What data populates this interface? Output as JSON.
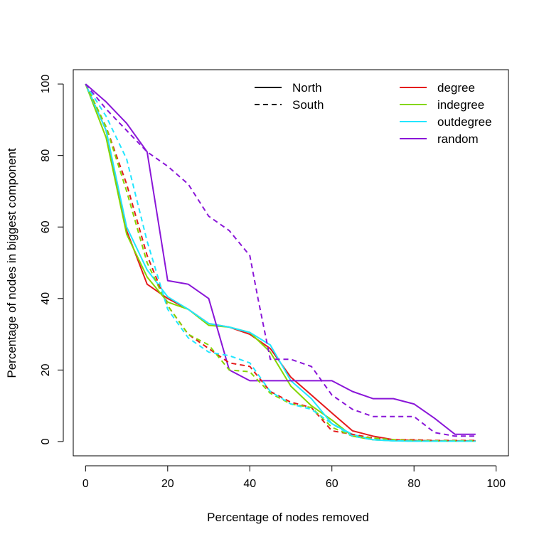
{
  "chart_data": {
    "type": "line",
    "title": "",
    "xlabel": "Percentage of nodes removed",
    "ylabel": "Percentage of nodes in biggest component",
    "xlim": [
      -3,
      103
    ],
    "ylim": [
      -4,
      104
    ],
    "xticks": [
      0,
      20,
      40,
      60,
      80,
      100
    ],
    "yticks": [
      0,
      20,
      40,
      60,
      80,
      100
    ],
    "grid": false,
    "legend_position": "top",
    "legend_linestyle": [
      {
        "label": "North",
        "dash": "solid"
      },
      {
        "label": "South",
        "dash": "dashed"
      }
    ],
    "legend_color": [
      {
        "label": "degree",
        "color": "#e41a1c"
      },
      {
        "label": "indegree",
        "color": "#84d600"
      },
      {
        "label": "outdegree",
        "color": "#22e6ff"
      },
      {
        "label": "random",
        "color": "#8a16d8"
      }
    ],
    "series": [
      {
        "color": "#e41a1c",
        "dash": "solid",
        "x": [
          0,
          5,
          10,
          15,
          20,
          25,
          30,
          35,
          40,
          45,
          50,
          55,
          60,
          65,
          70,
          75,
          80,
          85,
          90,
          95
        ],
        "y": [
          100,
          87,
          59,
          44,
          40,
          37,
          33,
          32,
          30,
          26,
          18,
          13,
          8,
          3,
          1.5,
          0.5,
          0.3,
          0.2,
          0.2,
          0.2
        ]
      },
      {
        "color": "#84d600",
        "dash": "solid",
        "x": [
          0,
          5,
          10,
          15,
          20,
          25,
          30,
          35,
          40,
          45,
          50,
          55,
          60,
          65,
          70,
          75,
          80,
          85,
          90,
          95
        ],
        "y": [
          100,
          85,
          58,
          46,
          39,
          37,
          32.5,
          32,
          30.5,
          25,
          15.5,
          10,
          6,
          1.5,
          0.5,
          0.2,
          0.1,
          0.1,
          0.1,
          0.1
        ]
      },
      {
        "color": "#22e6ff",
        "dash": "solid",
        "x": [
          0,
          5,
          10,
          15,
          20,
          25,
          30,
          35,
          40,
          45,
          50,
          55,
          60,
          65,
          70,
          75,
          80,
          85,
          90,
          95
        ],
        "y": [
          100,
          87,
          60,
          48,
          40.5,
          37,
          33,
          32,
          30.5,
          27,
          17,
          12,
          5,
          2,
          0.5,
          0.2,
          0.1,
          0.1,
          0.1,
          0.1
        ]
      },
      {
        "color": "#8a16d8",
        "dash": "solid",
        "x": [
          0,
          5,
          10,
          15,
          20,
          25,
          30,
          35,
          40,
          45,
          50,
          55,
          60,
          65,
          70,
          75,
          80,
          85,
          90,
          95
        ],
        "y": [
          100,
          95,
          89,
          81,
          45,
          44,
          40,
          20,
          17,
          17,
          17,
          17,
          17,
          14,
          12,
          12,
          10.5,
          6.5,
          2,
          2
        ]
      },
      {
        "color": "#e41a1c",
        "dash": "dashed",
        "x": [
          0,
          5,
          10,
          15,
          20,
          25,
          30,
          35,
          40,
          45,
          50,
          55,
          60,
          65,
          70,
          75,
          80,
          85,
          90,
          95
        ],
        "y": [
          100,
          88,
          72,
          52,
          38,
          30,
          26,
          22,
          21,
          14,
          11,
          9.5,
          3,
          2,
          1,
          0.5,
          0.5,
          0.3,
          0.3,
          0.3
        ]
      },
      {
        "color": "#84d600",
        "dash": "dashed",
        "x": [
          0,
          5,
          10,
          15,
          20,
          25,
          30,
          35,
          40,
          45,
          50,
          55,
          60,
          65,
          70,
          75,
          80,
          85,
          90,
          95
        ],
        "y": [
          100,
          88,
          70,
          50,
          38,
          30,
          27,
          20,
          19.5,
          13.5,
          10.5,
          9.5,
          4,
          1.5,
          1,
          0.5,
          0.3,
          0.2,
          0.2,
          0.2
        ]
      },
      {
        "color": "#22e6ff",
        "dash": "dashed",
        "x": [
          0,
          5,
          10,
          15,
          20,
          25,
          30,
          35,
          40,
          45,
          50,
          55,
          60,
          65,
          70,
          75,
          80,
          85,
          90,
          95
        ],
        "y": [
          100,
          91,
          79,
          56,
          37,
          29,
          25,
          24,
          22,
          14,
          10.5,
          9,
          5,
          1.5,
          0.5,
          0.2,
          0.1,
          0.1,
          0.1,
          0.1
        ]
      },
      {
        "color": "#8a16d8",
        "dash": "dashed",
        "x": [
          0,
          5,
          10,
          15,
          20,
          25,
          30,
          35,
          40,
          42,
          45,
          50,
          55,
          60,
          65,
          70,
          75,
          80,
          85,
          90,
          95
        ],
        "y": [
          100,
          93,
          87,
          81,
          77,
          72,
          63,
          59,
          52,
          40,
          23,
          23,
          21,
          13,
          9,
          7,
          7,
          7,
          2.5,
          1.5,
          1.5
        ]
      }
    ]
  }
}
